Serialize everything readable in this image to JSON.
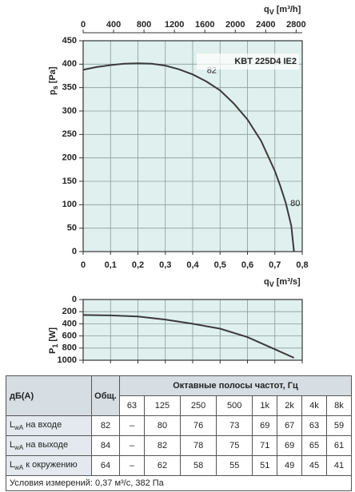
{
  "chart_data": [
    {
      "type": "line",
      "title": "KBT 225D4 IE2",
      "xlabel": "q",
      "xlabel_sub": "V",
      "xlabel_unit": "[m³/s]",
      "x2label": "q",
      "x2label_sub": "V",
      "x2label_unit": "[m³/h]",
      "ylabel": "p",
      "ylabel_sub": "s",
      "ylabel_unit": "[Pa]",
      "x": [
        0,
        0.05,
        0.1,
        0.15,
        0.2,
        0.25,
        0.3,
        0.35,
        0.4,
        0.45,
        0.5,
        0.55,
        0.6,
        0.65,
        0.7,
        0.72,
        0.74,
        0.76,
        0.77
      ],
      "y": [
        388,
        394,
        398,
        401,
        402,
        401,
        397,
        389,
        378,
        363,
        344,
        316,
        282,
        236,
        172,
        140,
        104,
        55,
        0
      ],
      "color": "#3a3a3a",
      "background": "#dff0ee",
      "grid": true,
      "xlim": [
        0,
        0.8
      ],
      "xticks": [
        {
          "value": 0,
          "label": "0"
        },
        {
          "value": 0.1,
          "label": "0,1"
        },
        {
          "value": 0.2,
          "label": "0,2"
        },
        {
          "value": 0.3,
          "label": "0,3"
        },
        {
          "value": 0.4,
          "label": "0,4"
        },
        {
          "value": 0.5,
          "label": "0,5"
        },
        {
          "value": 0.6,
          "label": "0,6"
        },
        {
          "value": 0.7,
          "label": "0,7"
        },
        {
          "value": 0.8,
          "label": "0,8"
        }
      ],
      "x2lim": [
        0,
        2880
      ],
      "x2ticks": [
        0,
        400,
        800,
        1200,
        1600,
        2000,
        2400,
        2800
      ],
      "ylim": [
        0,
        450
      ],
      "yticks": [
        0,
        50,
        100,
        150,
        200,
        250,
        300,
        350,
        400,
        450
      ],
      "annotations": [
        {
          "text": "82",
          "x": 0.44,
          "y": 386
        },
        {
          "text": "80",
          "x": 0.745,
          "y": 102
        }
      ]
    },
    {
      "type": "line",
      "ylabel": "P",
      "ylabel_sub": "1",
      "ylabel_unit": "[W]",
      "x": [
        0,
        0.1,
        0.2,
        0.3,
        0.4,
        0.5,
        0.6,
        0.7,
        0.77
      ],
      "y": [
        255,
        262,
        280,
        330,
        400,
        480,
        620,
        820,
        960
      ],
      "color": "#3a3a3a",
      "background": "#dff0ee",
      "grid": true,
      "inverted": true,
      "xtick_labels": false,
      "xlim": [
        0,
        0.8
      ],
      "xticks": [
        0,
        0.1,
        0.2,
        0.3,
        0.4,
        0.5,
        0.6,
        0.7,
        0.8
      ],
      "ylim": [
        0,
        1000
      ],
      "yticks": [
        0,
        200,
        400,
        600,
        800,
        1000
      ]
    }
  ],
  "table": {
    "head": [
      "дБ(A)",
      "Общ.",
      "Октавные полосы частот, Гц"
    ],
    "bands": [
      "63",
      "125",
      "250",
      "500",
      "1k",
      "2k",
      "4k",
      "8k"
    ],
    "rows": [
      {
        "symbol": "L",
        "sub": "wA",
        "text": " на входе",
        "total": "82",
        "values": [
          "–",
          "80",
          "76",
          "73",
          "69",
          "67",
          "63",
          "59"
        ]
      },
      {
        "symbol": "L",
        "sub": "wA",
        "text": " на выходе",
        "total": "84",
        "values": [
          "–",
          "82",
          "78",
          "75",
          "71",
          "69",
          "65",
          "61"
        ]
      },
      {
        "symbol": "L",
        "sub": "wA",
        "text": " к окружению",
        "total": "64",
        "values": [
          "–",
          "62",
          "58",
          "55",
          "51",
          "49",
          "45",
          "41"
        ]
      }
    ],
    "footer": "Условия измерений: 0,37 м³/с, 382 Па"
  }
}
